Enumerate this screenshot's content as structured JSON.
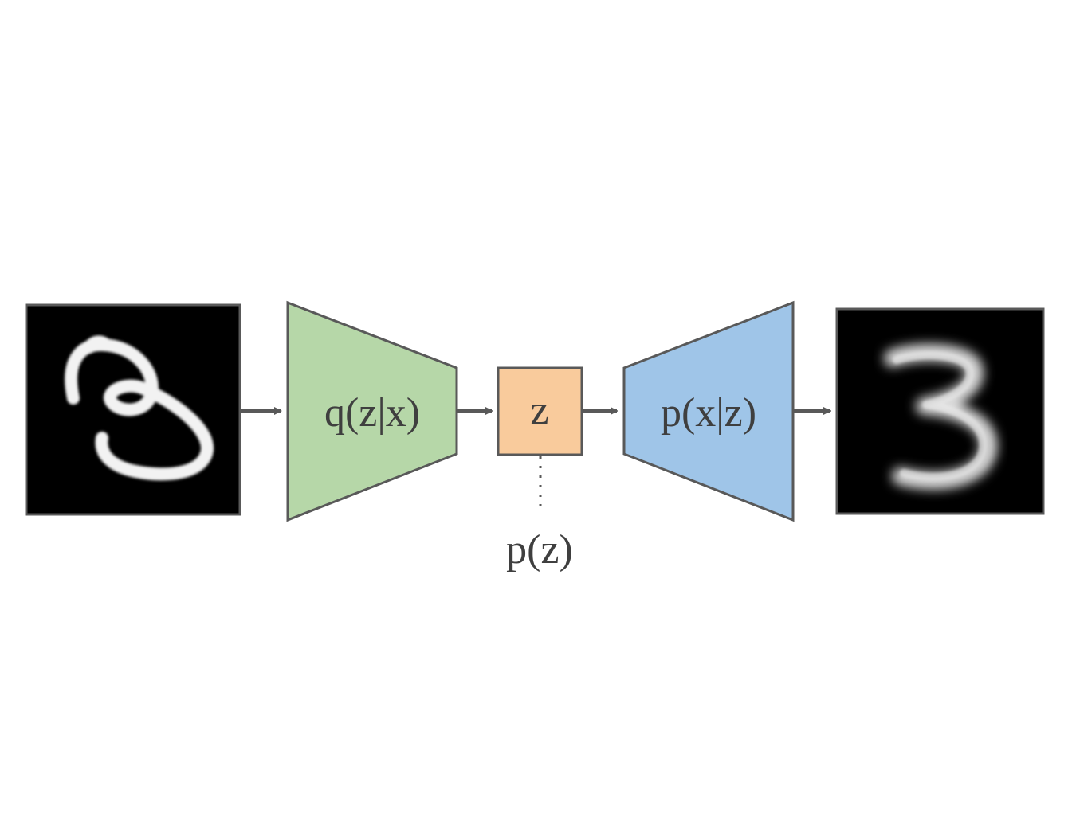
{
  "encoder": {
    "label": "q(z|x)",
    "color": "#b6d7a8"
  },
  "latent": {
    "label": "z",
    "color": "#f9cb9c"
  },
  "decoder": {
    "label": "p(x|z)",
    "color": "#9fc5e8"
  },
  "prior": {
    "label": "p(z)"
  },
  "input_image": {
    "description_icon": "handwritten-digit-3-image"
  },
  "output_image": {
    "description_icon": "blurry-digit-3-image"
  },
  "colors": {
    "stroke": "#595959",
    "arrow": "#595959",
    "image_bg": "#000000"
  }
}
